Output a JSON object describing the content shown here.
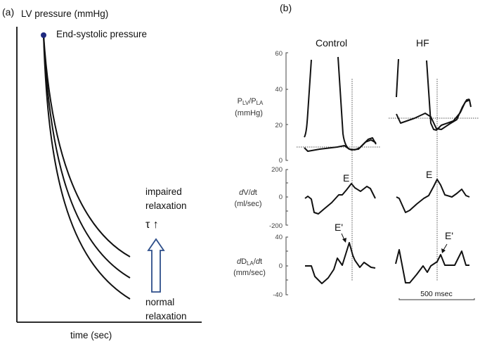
{
  "panel_a": {
    "label": "(a)",
    "ylabel": "LV pressure (mmHg)",
    "xlabel": "time (sec)",
    "point_label": "End-systolic pressure",
    "impaired": [
      "impaired",
      "relaxation"
    ],
    "tau": "τ ↑",
    "normal": [
      "normal",
      "relaxation"
    ],
    "arrow_color": "#2e4f8a",
    "dot_color": "#1f2a80"
  },
  "panel_b": {
    "label": "(b)",
    "columns": [
      "Control",
      "HF"
    ],
    "rows": [
      {
        "label": "PLV/PLA",
        "label_main": "P",
        "sub1": "LV",
        "slash": "/P",
        "sub2": "LA",
        "unit": "(mmHg)",
        "ticks": [
          "60",
          "40",
          "20",
          "0"
        ]
      },
      {
        "label_pre": "d",
        "label_mid": "V/",
        "label_post": "d",
        "label_end": "t",
        "unit": "(ml/sec)",
        "ticks": [
          "200",
          "0",
          "-200"
        ]
      },
      {
        "label_pre": "d",
        "label_mid": "D",
        "sub": "LA",
        "label_slash": "/",
        "label_post": "d",
        "label_end": "t",
        "unit": "(mm/sec)",
        "ticks": [
          "40",
          "0",
          "-40"
        ]
      }
    ],
    "annotations": {
      "e": "E",
      "e_prime": "E'"
    },
    "scale_bar": "500 msec"
  }
}
